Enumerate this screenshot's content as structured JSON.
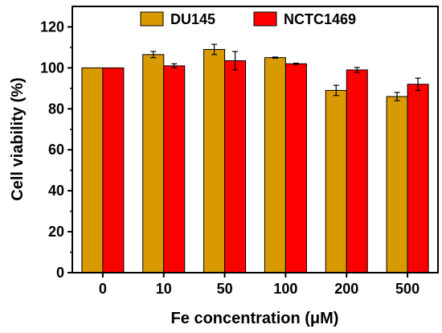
{
  "chart_data": {
    "type": "bar",
    "categories": [
      "0",
      "10",
      "50",
      "100",
      "200",
      "500"
    ],
    "series": [
      {
        "name": "DU145",
        "color": "#D99A00",
        "values": [
          100,
          106.5,
          109,
          105,
          89,
          86
        ],
        "errors": [
          0,
          1.5,
          2.5,
          0.3,
          2.5,
          2
        ]
      },
      {
        "name": "NCTC1469",
        "color": "#FF0000",
        "values": [
          100,
          101,
          103.5,
          102,
          99,
          92
        ],
        "errors": [
          0,
          1,
          4.5,
          0.3,
          1.2,
          3
        ]
      }
    ],
    "title": "",
    "xlabel": "Fe concentration (μM)",
    "ylabel": "Cell viability (%)",
    "ylim": [
      0,
      130
    ],
    "yticks": [
      "0",
      "20",
      "40",
      "60",
      "80",
      "100",
      "120"
    ],
    "legend_position": "top-center",
    "grid": false
  }
}
